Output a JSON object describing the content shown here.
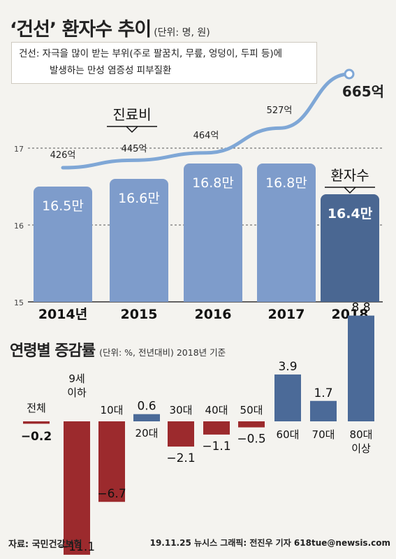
{
  "header": {
    "title": "‘건선’ 환자수 추이",
    "unit": "(단위: 명, 원)"
  },
  "definition": {
    "line1": "건선: 자극을 많이 받는 부위(주로 팔꿈치, 무릎, 엉덩이, 두피 등)에",
    "line2": "발생하는 만성 염증성 피부질환"
  },
  "top_chart_labels": {
    "cost_label": "진료비",
    "patients_label": "환자수"
  },
  "section2": {
    "title": "연령별 증감률",
    "unit": "(단위: %, 전년대비) 2018년 기준"
  },
  "footer": {
    "source": "자료: 국민건강보험",
    "credit": "19.11.25 뉴시스 그래픽: 전진우 기자 618tue@newsis.com"
  },
  "colors": {
    "bar_light": "#7e9ccb",
    "bar_dark": "#4a6792",
    "line": "#7fa7d6",
    "positive": "#4b6a98",
    "negative": "#9c2a2d"
  },
  "chart_data": [
    {
      "type": "bar",
      "categories": [
        "2014년",
        "2015",
        "2016",
        "2017",
        "2018"
      ],
      "ylim": [
        15,
        17
      ],
      "yticks": [
        "15",
        "16",
        "17"
      ],
      "series": [
        {
          "name": "환자수",
          "values": [
            16.5,
            16.6,
            16.8,
            16.8,
            16.4
          ],
          "labels": [
            "16.5만",
            "16.6만",
            "16.8만",
            "16.8만",
            "16.4만"
          ]
        },
        {
          "name": "진료비",
          "values": [
            426,
            445,
            464,
            527,
            665
          ],
          "labels": [
            "426억",
            "445억",
            "464억",
            "527억",
            "665억"
          ]
        }
      ]
    },
    {
      "type": "bar",
      "categories": [
        "전체",
        "9세\n이하",
        "10대",
        "20대",
        "30대",
        "40대",
        "50대",
        "60대",
        "70대",
        "80대\n이상"
      ],
      "values": [
        -0.2,
        -11.1,
        -6.7,
        0.6,
        -2.1,
        -1.1,
        -0.5,
        3.9,
        1.7,
        8.8
      ],
      "labels": [
        "−0.2",
        "−11.1",
        "−6.7",
        "0.6",
        "−2.1",
        "−1.1",
        "−0.5",
        "3.9",
        "1.7",
        "8.8"
      ]
    }
  ]
}
